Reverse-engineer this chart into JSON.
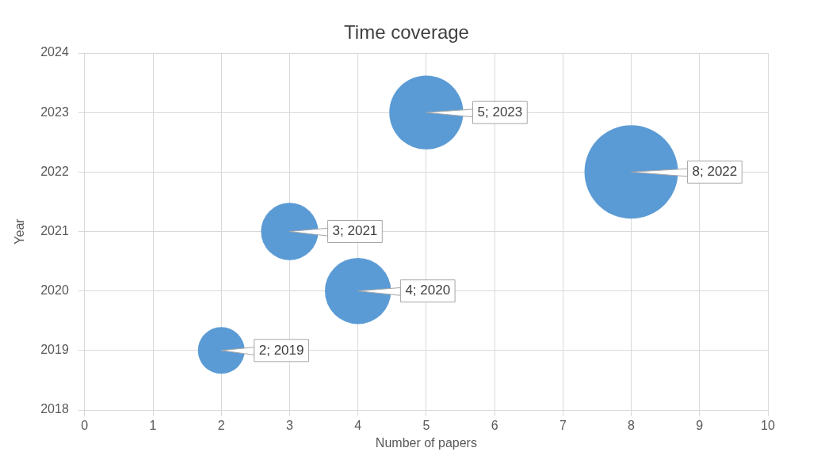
{
  "chart_data": {
    "type": "bubble",
    "title": "Time coverage",
    "xlabel": "Number of papers",
    "ylabel": "Year",
    "x": [
      2,
      3,
      4,
      5,
      8
    ],
    "values": [
      2019,
      2021,
      2020,
      2023,
      2022
    ],
    "sizes": [
      0.25,
      0.375,
      0.5,
      0.625,
      1
    ],
    "value_labels": [
      "2; 2019",
      "3; 2021",
      "4; 2020",
      "5; 2023",
      "8; 2022"
    ],
    "color": "#5b9bd5",
    "xlim": [
      0,
      10
    ],
    "xticks": [
      0,
      1,
      2,
      3,
      4,
      5,
      6,
      7,
      8,
      9,
      10
    ],
    "ylim": [
      2018,
      2024
    ],
    "yticks": [
      2018,
      2019,
      2020,
      2021,
      2022,
      2023,
      2024
    ],
    "grid": true,
    "legend": false
  }
}
